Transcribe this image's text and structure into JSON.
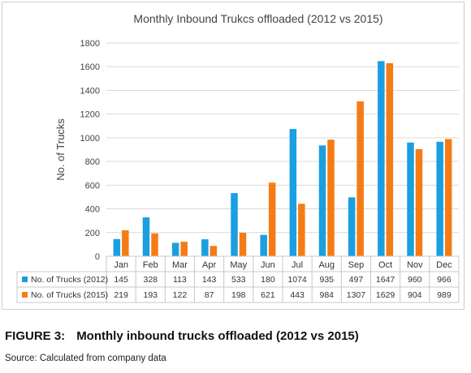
{
  "chart_data": {
    "type": "bar",
    "title": "Monthly Inbound Trukcs offloaded (2012 vs 2015)",
    "xlabel": "",
    "ylabel": "No. of Trucks",
    "categories": [
      "Jan",
      "Feb",
      "Mar",
      "Apr",
      "May",
      "Jun",
      "Jul",
      "Aug",
      "Sep",
      "Oct",
      "Nov",
      "Dec"
    ],
    "series": [
      {
        "name": "No. of Trucks (2012)",
        "color": "#1a9fe0",
        "values": [
          145,
          328,
          113,
          143,
          533,
          180,
          1074,
          935,
          497,
          1647,
          960,
          966
        ]
      },
      {
        "name": "No. of Trucks (2015)",
        "color": "#f57c14",
        "values": [
          219,
          193,
          122,
          87,
          198,
          621,
          443,
          984,
          1307,
          1629,
          904,
          989
        ]
      }
    ],
    "ylim": [
      0,
      1800
    ],
    "yticks": [
      0,
      200,
      400,
      600,
      800,
      1000,
      1200,
      1400,
      1600,
      1800
    ],
    "grid": true,
    "legend": "data-table",
    "data_table": true
  },
  "caption": {
    "label": "FIGURE 3:",
    "text": "Monthly inbound trucks offloaded (2012 vs 2015)"
  },
  "source": "Source: Calculated from company data"
}
